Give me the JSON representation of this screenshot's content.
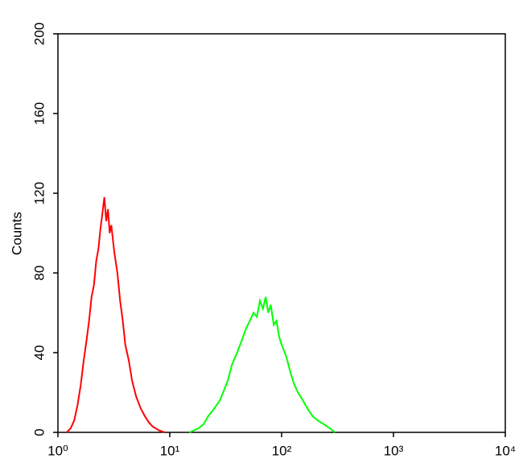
{
  "chart_data": {
    "type": "line",
    "y_label": "Counts",
    "x_scale": "log",
    "xlim": [
      1,
      10000
    ],
    "xticks": [
      {
        "value": 1,
        "label": "10⁰"
      },
      {
        "value": 10,
        "label": "10¹"
      },
      {
        "value": 100,
        "label": "10²"
      },
      {
        "value": 1000,
        "label": "10³"
      },
      {
        "value": 10000,
        "label": "10⁴"
      }
    ],
    "ylim": [
      0,
      200
    ],
    "yticks": [
      0,
      40,
      80,
      120,
      160,
      200
    ],
    "series": [
      {
        "color": "#ff0000",
        "x": [
          1.2,
          1.3,
          1.4,
          1.5,
          1.6,
          1.7,
          1.8,
          1.9,
          2.0,
          2.1,
          2.2,
          2.3,
          2.4,
          2.5,
          2.6,
          2.7,
          2.8,
          2.9,
          3.0,
          3.2,
          3.4,
          3.6,
          3.8,
          4.0,
          4.3,
          4.6,
          5.0,
          5.5,
          6.0,
          6.5,
          7.0,
          8.0,
          9.0
        ],
        "values": [
          0,
          2,
          6,
          14,
          24,
          36,
          46,
          56,
          68,
          74,
          86,
          92,
          102,
          110,
          118,
          106,
          112,
          100,
          104,
          90,
          80,
          66,
          56,
          44,
          36,
          26,
          18,
          12,
          8,
          5,
          3,
          1,
          0
        ]
      },
      {
        "color": "#00ff00",
        "x": [
          15,
          18,
          20,
          22,
          25,
          28,
          30,
          33,
          36,
          40,
          44,
          48,
          52,
          56,
          60,
          64,
          68,
          72,
          76,
          80,
          85,
          90,
          95,
          100,
          110,
          120,
          130,
          140,
          155,
          170,
          190,
          210,
          240,
          270,
          300
        ],
        "values": [
          0,
          2,
          4,
          8,
          12,
          16,
          20,
          26,
          34,
          40,
          46,
          52,
          56,
          60,
          58,
          66,
          62,
          68,
          60,
          64,
          54,
          56,
          48,
          44,
          38,
          30,
          24,
          20,
          16,
          12,
          8,
          6,
          4,
          2,
          0
        ]
      }
    ]
  }
}
